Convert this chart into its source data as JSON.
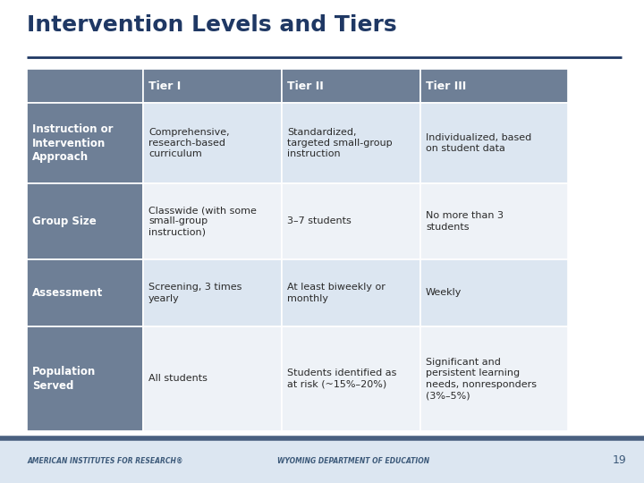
{
  "title": "Intervention Levels and Tiers",
  "title_color": "#1f3864",
  "title_fontsize": 18,
  "header_row": [
    "",
    "Tier I",
    "Tier II",
    "Tier III"
  ],
  "row_labels": [
    "Instruction or\nIntervention\nApproach",
    "Group Size",
    "Assessment",
    "Population\nServed"
  ],
  "tier1": [
    "Comprehensive,\nresearch-based\ncurriculum",
    "Classwide (with some\nsmall-group\ninstruction)",
    "Screening, 3 times\nyearly",
    "All students"
  ],
  "tier2": [
    "Standardized,\ntargeted small-group\ninstruction",
    "3–7 students",
    "At least biweekly or\nmonthly",
    "Students identified as\nat risk (~15%–20%)"
  ],
  "tier3": [
    "Individualized, based\non student data",
    "No more than 3\nstudents",
    "Weekly",
    "Significant and\npersistent learning\nneeds, nonresponders\n(3%–5%)"
  ],
  "header_bg": "#6e7f96",
  "row_label_bg": "#6e7f96",
  "row_even_bg": "#dce6f1",
  "row_odd_bg": "#eef2f7",
  "header_text_color": "#ffffff",
  "row_label_text_color": "#ffffff",
  "cell_text_color": "#2a2a2a",
  "footer_line_color": "#4a6080",
  "footer_bg": "#dce6f1",
  "page_number": "19",
  "footer_left": "AMERICAN INSTITUTES FOR RESEARCH®",
  "footer_right": "WYOMING DEPARTMENT OF EDUCATION",
  "separator_line_color": "#1f3864",
  "bg_color": "#ffffff"
}
